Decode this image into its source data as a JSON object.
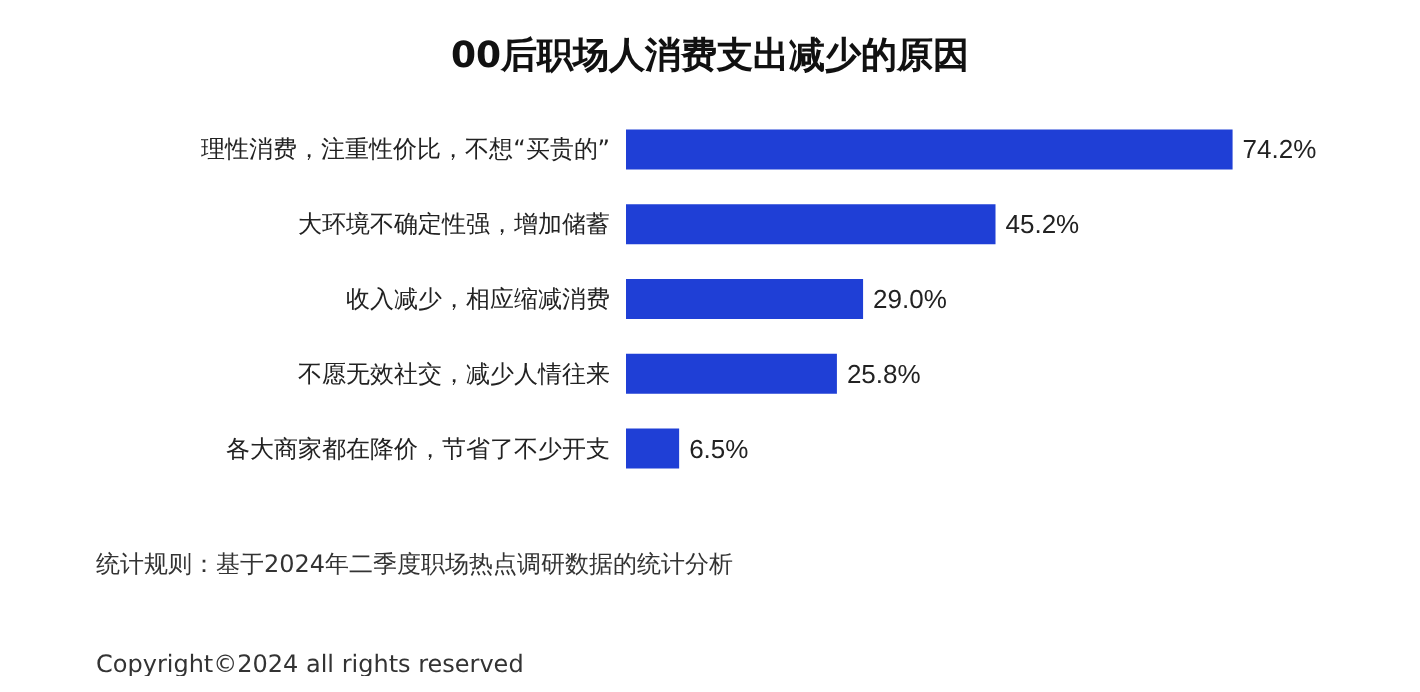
{
  "chart_data": {
    "type": "bar",
    "orientation": "horizontal",
    "title": "00后职场人消费支出减少的原因",
    "categories": [
      "理性消费，注重性价比，不想“买贵的”",
      "大环境不确定性强，增加储蓄",
      "收入减少，相应缩减消费",
      "不愿无效社交，减少人情往来",
      "各大商家都在降价，节省了不少开支"
    ],
    "values": [
      74.2,
      45.2,
      29.0,
      25.8,
      6.5
    ],
    "value_labels": [
      "74.2%",
      "45.2%",
      "29.0%",
      "25.8%",
      "6.5%"
    ],
    "color": "#1f3fd6",
    "annotations": [
      "统计规则：基于2024年二季度职场热点调研数据的统计分析",
      "Copyright©2024 all rights reserved"
    ]
  }
}
